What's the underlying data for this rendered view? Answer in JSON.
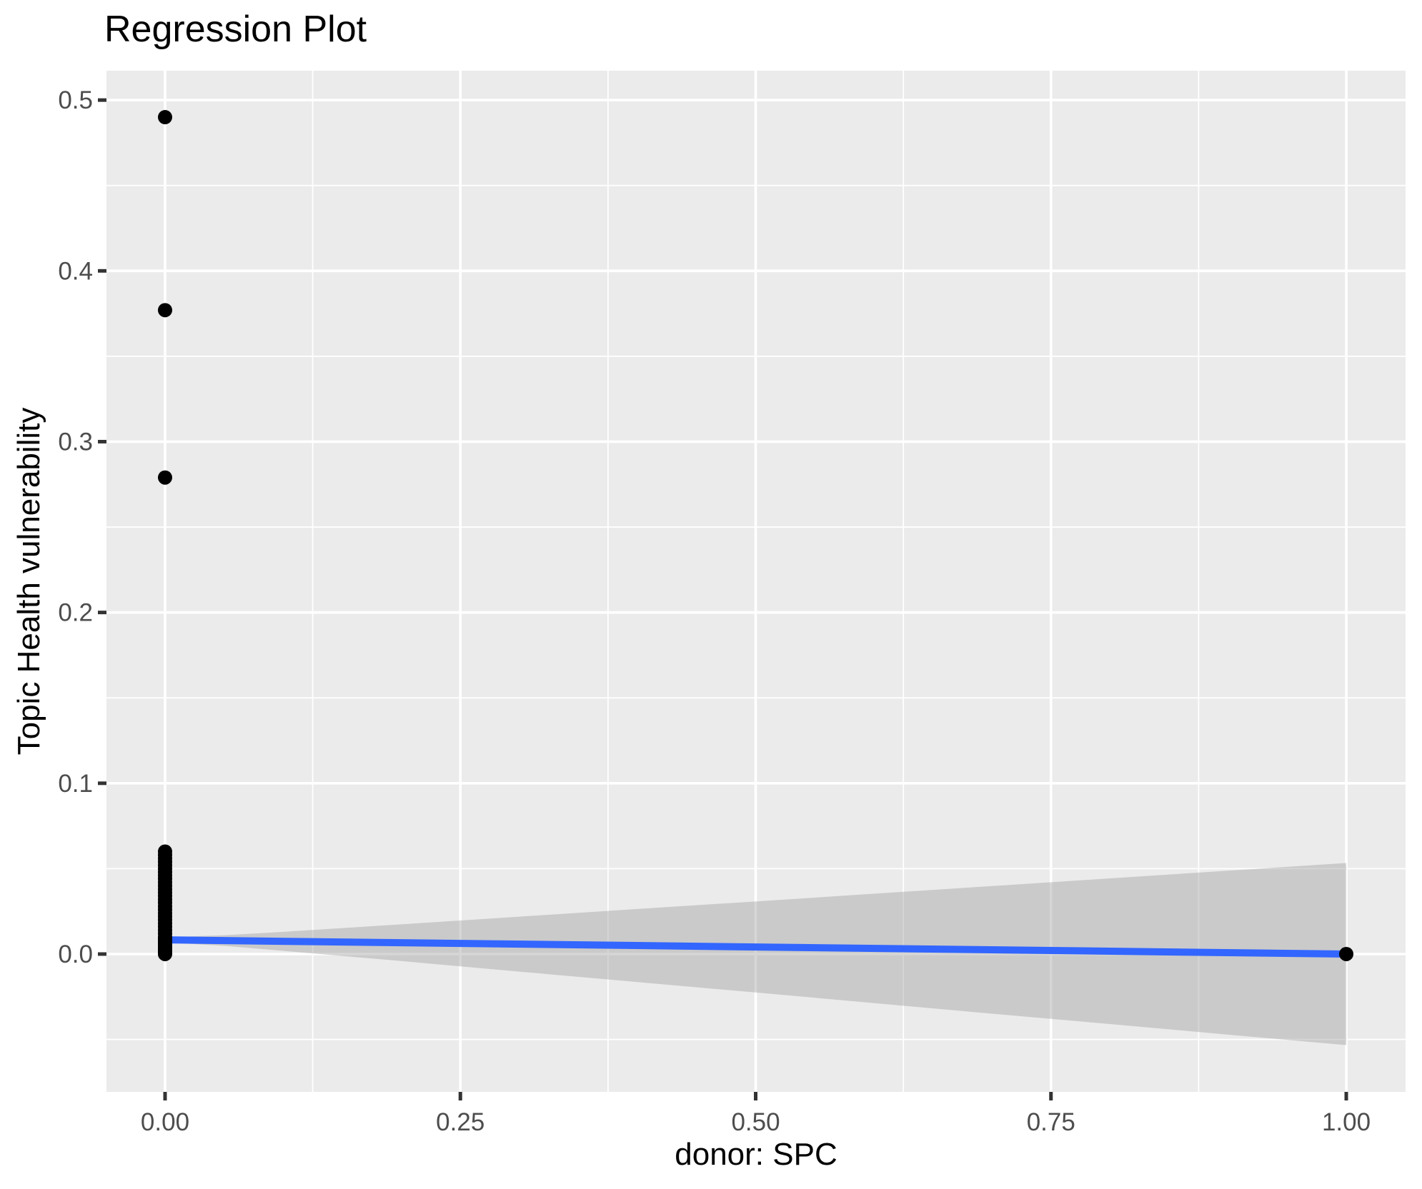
{
  "chart_data": {
    "type": "scatter",
    "title": "Regression Plot",
    "xlabel": "donor: SPC",
    "ylabel": "Topic Health vulnerability",
    "xlim": [
      -0.0496,
      1.0502
    ],
    "ylim": [
      -0.0807,
      0.5172
    ],
    "grid": "on",
    "legend": "none",
    "x_major_ticks": [
      {
        "value": 0.0,
        "label": "0.00"
      },
      {
        "value": 0.25,
        "label": "0.25"
      },
      {
        "value": 0.5,
        "label": "0.50"
      },
      {
        "value": 0.75,
        "label": "0.75"
      },
      {
        "value": 1.0,
        "label": "1.00"
      }
    ],
    "y_major_ticks": [
      {
        "value": 0.0,
        "label": "0.0"
      },
      {
        "value": 0.1,
        "label": "0.1"
      },
      {
        "value": 0.2,
        "label": "0.2"
      },
      {
        "value": 0.3,
        "label": "0.3"
      },
      {
        "value": 0.4,
        "label": "0.4"
      },
      {
        "value": 0.5,
        "label": "0.5"
      }
    ],
    "x_minor_ticks": [
      0.125,
      0.375,
      0.625,
      0.875
    ],
    "y_minor_ticks": [
      -0.05,
      0.05,
      0.15,
      0.25,
      0.35,
      0.45
    ],
    "points": [
      [
        0,
        0.0
      ],
      [
        0,
        0.001
      ],
      [
        0,
        0.002
      ],
      [
        0,
        0.003
      ],
      [
        0,
        0.004
      ],
      [
        0,
        0.005
      ],
      [
        0,
        0.006
      ],
      [
        0,
        0.007
      ],
      [
        0,
        0.008
      ],
      [
        0,
        0.009
      ],
      [
        0,
        0.01
      ],
      [
        0,
        0.012
      ],
      [
        0,
        0.014
      ],
      [
        0,
        0.016
      ],
      [
        0,
        0.018
      ],
      [
        0,
        0.02
      ],
      [
        0,
        0.022
      ],
      [
        0,
        0.024
      ],
      [
        0,
        0.026
      ],
      [
        0,
        0.028
      ],
      [
        0,
        0.03
      ],
      [
        0,
        0.032
      ],
      [
        0,
        0.034
      ],
      [
        0,
        0.036
      ],
      [
        0,
        0.038
      ],
      [
        0,
        0.04
      ],
      [
        0,
        0.042
      ],
      [
        0,
        0.044
      ],
      [
        0,
        0.046
      ],
      [
        0,
        0.048
      ],
      [
        0,
        0.05
      ],
      [
        0,
        0.052
      ],
      [
        0,
        0.054
      ],
      [
        0,
        0.056
      ],
      [
        0,
        0.058
      ],
      [
        0,
        0.06
      ],
      [
        0,
        0.279
      ],
      [
        0,
        0.377
      ],
      [
        0,
        0.49
      ],
      [
        1,
        0.0
      ]
    ],
    "regression_line": {
      "x0": 0.0,
      "y0": 0.0083,
      "x1": 1.0,
      "y1": 0.0
    },
    "confidence_band": [
      {
        "x": 0.0,
        "upper": 0.0098,
        "lower": 0.0068
      },
      {
        "x": 0.05,
        "upper": 0.011,
        "lower": 0.0048
      },
      {
        "x": 0.1,
        "upper": 0.013,
        "lower": 0.0019
      },
      {
        "x": 0.2,
        "upper": 0.0174,
        "lower": -0.0041
      },
      {
        "x": 0.3,
        "upper": 0.0219,
        "lower": -0.0103
      },
      {
        "x": 0.4,
        "upper": 0.0264,
        "lower": -0.0164
      },
      {
        "x": 0.5,
        "upper": 0.0308,
        "lower": -0.0225
      },
      {
        "x": 0.6,
        "upper": 0.0353,
        "lower": -0.0287
      },
      {
        "x": 0.7,
        "upper": 0.0398,
        "lower": -0.0349
      },
      {
        "x": 0.8,
        "upper": 0.0443,
        "lower": -0.041
      },
      {
        "x": 0.9,
        "upper": 0.0488,
        "lower": -0.0472
      },
      {
        "x": 1.0,
        "upper": 0.0533,
        "lower": -0.0533
      }
    ],
    "colors": {
      "panel_bg": "#EBEBEB",
      "grid": "#FFFFFF",
      "point": "#000000",
      "line": "#3366FF",
      "ribbon_base": "#999999",
      "ribbon_alpha": 0.4,
      "tick_label": "#4D4D4D",
      "tick_mark": "#333333",
      "title": "#000000"
    }
  }
}
